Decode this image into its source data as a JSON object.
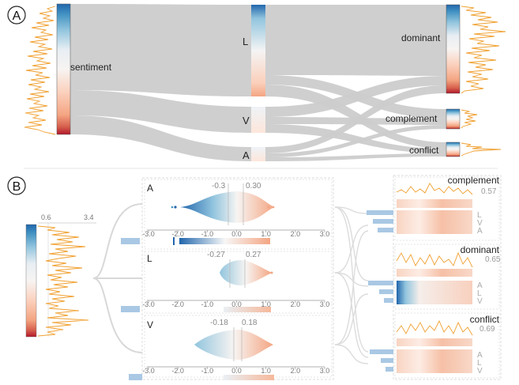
{
  "panel_a": {
    "label": "A",
    "source": {
      "name": "sentiment"
    },
    "middle": [
      {
        "name": "L"
      },
      {
        "name": "V"
      },
      {
        "name": "A"
      }
    ],
    "targets": [
      {
        "name": "dominant"
      },
      {
        "name": "complement"
      },
      {
        "name": "conflict"
      }
    ]
  },
  "panel_b": {
    "label": "B",
    "hist_ticks": {
      "left": "0.6",
      "right": "3.4"
    },
    "axis_ticks": [
      "-3.0",
      "-2.0",
      "-1.0",
      "0.0",
      "1.0",
      "2.0",
      "3.0"
    ],
    "modalities": [
      {
        "name": "A",
        "low": "-0.3",
        "high": "0.30"
      },
      {
        "name": "L",
        "low": "-0.27",
        "high": "0.27"
      },
      {
        "name": "V",
        "low": "-0.18",
        "high": "0.18"
      }
    ],
    "cards": [
      {
        "title": "complement",
        "value": "0.57",
        "rows": [
          "L",
          "V",
          "A"
        ]
      },
      {
        "title": "dominant",
        "value": "0.65",
        "rows": [
          "A",
          "L",
          "V"
        ]
      },
      {
        "title": "conflict",
        "value": "0.69",
        "rows": [
          "A",
          "L",
          "V"
        ]
      }
    ]
  },
  "colors": {
    "negative": "#2166ac",
    "positive": "#b2182b",
    "flow": "#cccccc",
    "line": "#f0a030"
  }
}
